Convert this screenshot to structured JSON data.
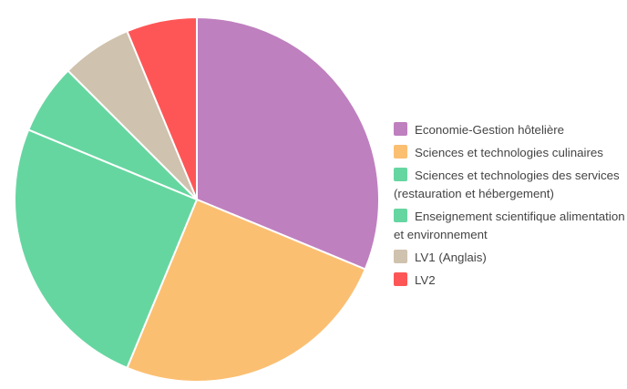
{
  "chart_data": {
    "type": "pie",
    "categories": [
      "Economie-Gestion hôtelière",
      "Sciences et technologies culinaires",
      "Sciences et technologies des services (restauration et hébergement)",
      "Enseignement scientifique alimentation et environnement",
      "LV1 (Anglais)",
      "LV2"
    ],
    "values": [
      5,
      4,
      4,
      1,
      1,
      1
    ],
    "colors": [
      "#bf80bf",
      "#fbbf72",
      "#66d6a0",
      "#66d6a0",
      "#cfc2ae",
      "#fe5656"
    ]
  }
}
